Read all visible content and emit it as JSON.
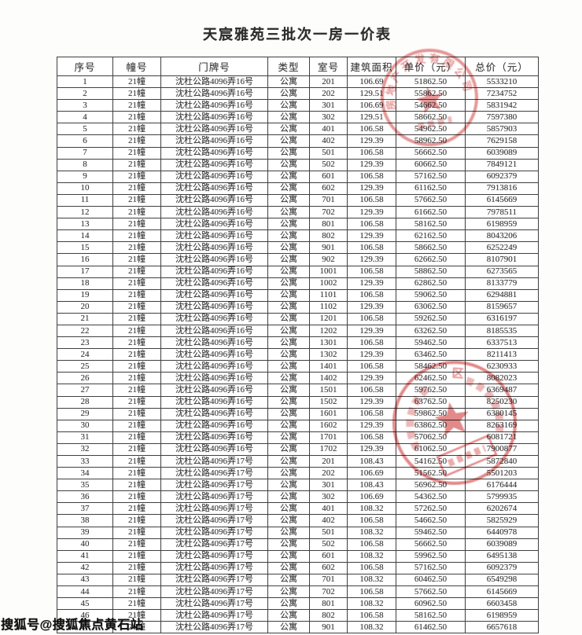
{
  "title": "天宸雅苑三批次一房一价表",
  "watermark": "搜狐号@搜狐焦点黄石站",
  "colors": {
    "stamp_red": "#d44b4b",
    "table_border": "#3f3f3f",
    "text": "#3d3d3d"
  },
  "table": {
    "headers": [
      "序号",
      "幢号",
      "门牌号",
      "类型",
      "室号",
      "建筑面积",
      "单价（元）",
      "总价（元）"
    ],
    "rows": [
      [
        "1",
        "21幢",
        "沈杜公路4096弄16号",
        "公寓",
        "201",
        "106.69",
        "51862.50",
        "5533210"
      ],
      [
        "2",
        "21幢",
        "沈杜公路4096弄16号",
        "公寓",
        "202",
        "129.51",
        "55862.50",
        "7234752"
      ],
      [
        "3",
        "21幢",
        "沈杜公路4096弄16号",
        "公寓",
        "301",
        "106.69",
        "54662.50",
        "5831942"
      ],
      [
        "4",
        "21幢",
        "沈杜公路4096弄16号",
        "公寓",
        "302",
        "129.51",
        "58662.50",
        "7597380"
      ],
      [
        "5",
        "21幢",
        "沈杜公路4096弄16号",
        "公寓",
        "401",
        "106.58",
        "54962.50",
        "5857903"
      ],
      [
        "6",
        "21幢",
        "沈杜公路4096弄16号",
        "公寓",
        "402",
        "129.39",
        "58962.50",
        "7629158"
      ],
      [
        "7",
        "21幢",
        "沈杜公路4096弄16号",
        "公寓",
        "501",
        "106.58",
        "56662.50",
        "6039089"
      ],
      [
        "8",
        "21幢",
        "沈杜公路4096弄16号",
        "公寓",
        "502",
        "129.39",
        "60662.50",
        "7849121"
      ],
      [
        "9",
        "21幢",
        "沈杜公路4096弄16号",
        "公寓",
        "601",
        "106.58",
        "57162.50",
        "6092379"
      ],
      [
        "10",
        "21幢",
        "沈杜公路4096弄16号",
        "公寓",
        "602",
        "129.39",
        "61162.50",
        "7913816"
      ],
      [
        "11",
        "21幢",
        "沈杜公路4096弄16号",
        "公寓",
        "701",
        "106.58",
        "57662.50",
        "6145669"
      ],
      [
        "12",
        "21幢",
        "沈杜公路4096弄16号",
        "公寓",
        "702",
        "129.39",
        "61662.50",
        "7978511"
      ],
      [
        "13",
        "21幢",
        "沈杜公路4096弄16号",
        "公寓",
        "801",
        "106.58",
        "58162.50",
        "6198959"
      ],
      [
        "14",
        "21幢",
        "沈杜公路4096弄16号",
        "公寓",
        "802",
        "129.39",
        "62162.50",
        "8043206"
      ],
      [
        "15",
        "21幢",
        "沈杜公路4096弄16号",
        "公寓",
        "901",
        "106.58",
        "58662.50",
        "6252249"
      ],
      [
        "16",
        "21幢",
        "沈杜公路4096弄16号",
        "公寓",
        "902",
        "129.39",
        "62662.50",
        "8107901"
      ],
      [
        "17",
        "21幢",
        "沈杜公路4096弄16号",
        "公寓",
        "1001",
        "106.58",
        "58862.50",
        "6273565"
      ],
      [
        "18",
        "21幢",
        "沈杜公路4096弄16号",
        "公寓",
        "1002",
        "129.39",
        "62862.50",
        "8133779"
      ],
      [
        "19",
        "21幢",
        "沈杜公路4096弄16号",
        "公寓",
        "1101",
        "106.58",
        "59062.50",
        "6294881"
      ],
      [
        "20",
        "21幢",
        "沈杜公路4096弄16号",
        "公寓",
        "1102",
        "129.39",
        "63062.50",
        "8159657"
      ],
      [
        "21",
        "21幢",
        "沈杜公路4096弄16号",
        "公寓",
        "1201",
        "106.58",
        "59262.50",
        "6316197"
      ],
      [
        "22",
        "21幢",
        "沈杜公路4096弄16号",
        "公寓",
        "1202",
        "129.39",
        "63262.50",
        "8185535"
      ],
      [
        "23",
        "21幢",
        "沈杜公路4096弄16号",
        "公寓",
        "1301",
        "106.58",
        "59462.50",
        "6337513"
      ],
      [
        "24",
        "21幢",
        "沈杜公路4096弄16号",
        "公寓",
        "1302",
        "129.39",
        "63462.50",
        "8211413"
      ],
      [
        "25",
        "21幢",
        "沈杜公路4096弄16号",
        "公寓",
        "1401",
        "106.58",
        "58462.50",
        "6230933"
      ],
      [
        "26",
        "21幢",
        "沈杜公路4096弄16号",
        "公寓",
        "1402",
        "129.39",
        "62462.50",
        "8082023"
      ],
      [
        "27",
        "21幢",
        "沈杜公路4096弄16号",
        "公寓",
        "1501",
        "106.58",
        "59762.50",
        "6369487"
      ],
      [
        "28",
        "21幢",
        "沈杜公路4096弄16号",
        "公寓",
        "1502",
        "129.39",
        "63762.50",
        "8250230"
      ],
      [
        "29",
        "21幢",
        "沈杜公路4096弄16号",
        "公寓",
        "1601",
        "106.58",
        "59862.50",
        "6380145"
      ],
      [
        "30",
        "21幢",
        "沈杜公路4096弄16号",
        "公寓",
        "1602",
        "129.39",
        "63862.50",
        "8263169"
      ],
      [
        "31",
        "21幢",
        "沈杜公路4096弄16号",
        "公寓",
        "1701",
        "106.58",
        "57062.50",
        "6081721"
      ],
      [
        "32",
        "21幢",
        "沈杜公路4096弄16号",
        "公寓",
        "1702",
        "129.39",
        "61062.50",
        "7900877"
      ],
      [
        "33",
        "21幢",
        "沈杜公路4096弄17号",
        "公寓",
        "201",
        "108.43",
        "54162.50",
        "5872840"
      ],
      [
        "34",
        "21幢",
        "沈杜公路4096弄17号",
        "公寓",
        "202",
        "106.69",
        "51562.50",
        "5501203"
      ],
      [
        "35",
        "21幢",
        "沈杜公路4096弄17号",
        "公寓",
        "301",
        "108.43",
        "56962.50",
        "6176444"
      ],
      [
        "36",
        "21幢",
        "沈杜公路4096弄17号",
        "公寓",
        "302",
        "106.69",
        "54362.50",
        "5799935"
      ],
      [
        "37",
        "21幢",
        "沈杜公路4096弄17号",
        "公寓",
        "401",
        "108.32",
        "57262.50",
        "6202674"
      ],
      [
        "38",
        "21幢",
        "沈杜公路4096弄17号",
        "公寓",
        "402",
        "106.58",
        "54662.50",
        "5825929"
      ],
      [
        "39",
        "21幢",
        "沈杜公路4096弄17号",
        "公寓",
        "501",
        "108.32",
        "59462.50",
        "6440978"
      ],
      [
        "40",
        "21幢",
        "沈杜公路4096弄17号",
        "公寓",
        "502",
        "106.58",
        "56662.50",
        "6039089"
      ],
      [
        "41",
        "21幢",
        "沈杜公路4096弄17号",
        "公寓",
        "601",
        "108.32",
        "59962.50",
        "6495138"
      ],
      [
        "42",
        "21幢",
        "沈杜公路4096弄17号",
        "公寓",
        "602",
        "106.58",
        "57162.50",
        "6092379"
      ],
      [
        "43",
        "21幢",
        "沈杜公路4096弄17号",
        "公寓",
        "701",
        "108.32",
        "60462.50",
        "6549298"
      ],
      [
        "44",
        "21幢",
        "沈杜公路4096弄17号",
        "公寓",
        "702",
        "106.58",
        "57662.50",
        "6145669"
      ],
      [
        "45",
        "21幢",
        "沈杜公路4096弄17号",
        "公寓",
        "801",
        "108.32",
        "60962.50",
        "6603458"
      ],
      [
        "46",
        "21幢",
        "沈杜公路4096弄17号",
        "公寓",
        "802",
        "106.58",
        "58162.50",
        "6198959"
      ],
      [
        "47",
        "21幢",
        "沈杜公路4096弄17号",
        "公寓",
        "901",
        "108.32",
        "61462.50",
        "6657618"
      ]
    ]
  },
  "stamps": {
    "top": {
      "arc_text": "房地产开发有限公司"
    },
    "bottom": {
      "arc_text": "区"
    }
  }
}
